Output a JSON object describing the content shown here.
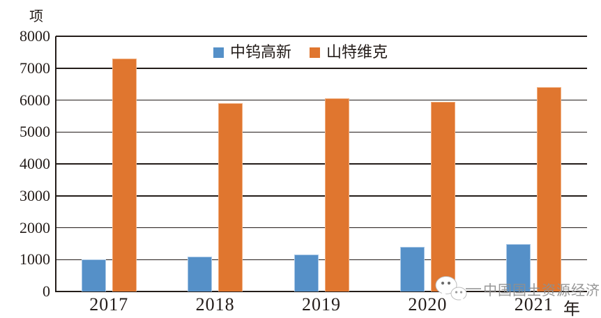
{
  "chart_data": {
    "type": "bar",
    "title": "",
    "categories": [
      "2017",
      "2018",
      "2019",
      "2020",
      "2021"
    ],
    "series": [
      {
        "name": "中钨高新",
        "slug": "zhongwu-gaoxin",
        "color": "#5590C8",
        "edge_color": "#A9C8E7",
        "values": [
          1000,
          1100,
          1150,
          1400,
          1480
        ]
      },
      {
        "name": "山特维克",
        "slug": "sandvik",
        "color": "#E0762F",
        "edge_color": "#F0AD7E",
        "values": [
          7300,
          5900,
          6050,
          5950,
          6400
        ]
      }
    ],
    "xlabel": "年",
    "ylabel": "项",
    "ylim": [
      0,
      8000
    ],
    "ytick_step": 1000,
    "grid": true,
    "legend_position": "top-center"
  },
  "watermark": {
    "icon": "wechat-icon",
    "text": "中国国土资源经济"
  },
  "colors": {
    "axis": "#231C19",
    "text": "#231C19",
    "watermark_text": "#8F8F8F",
    "background": "#FFFFFF",
    "series_blue": "#5590C8",
    "series_orange": "#E0762F"
  }
}
